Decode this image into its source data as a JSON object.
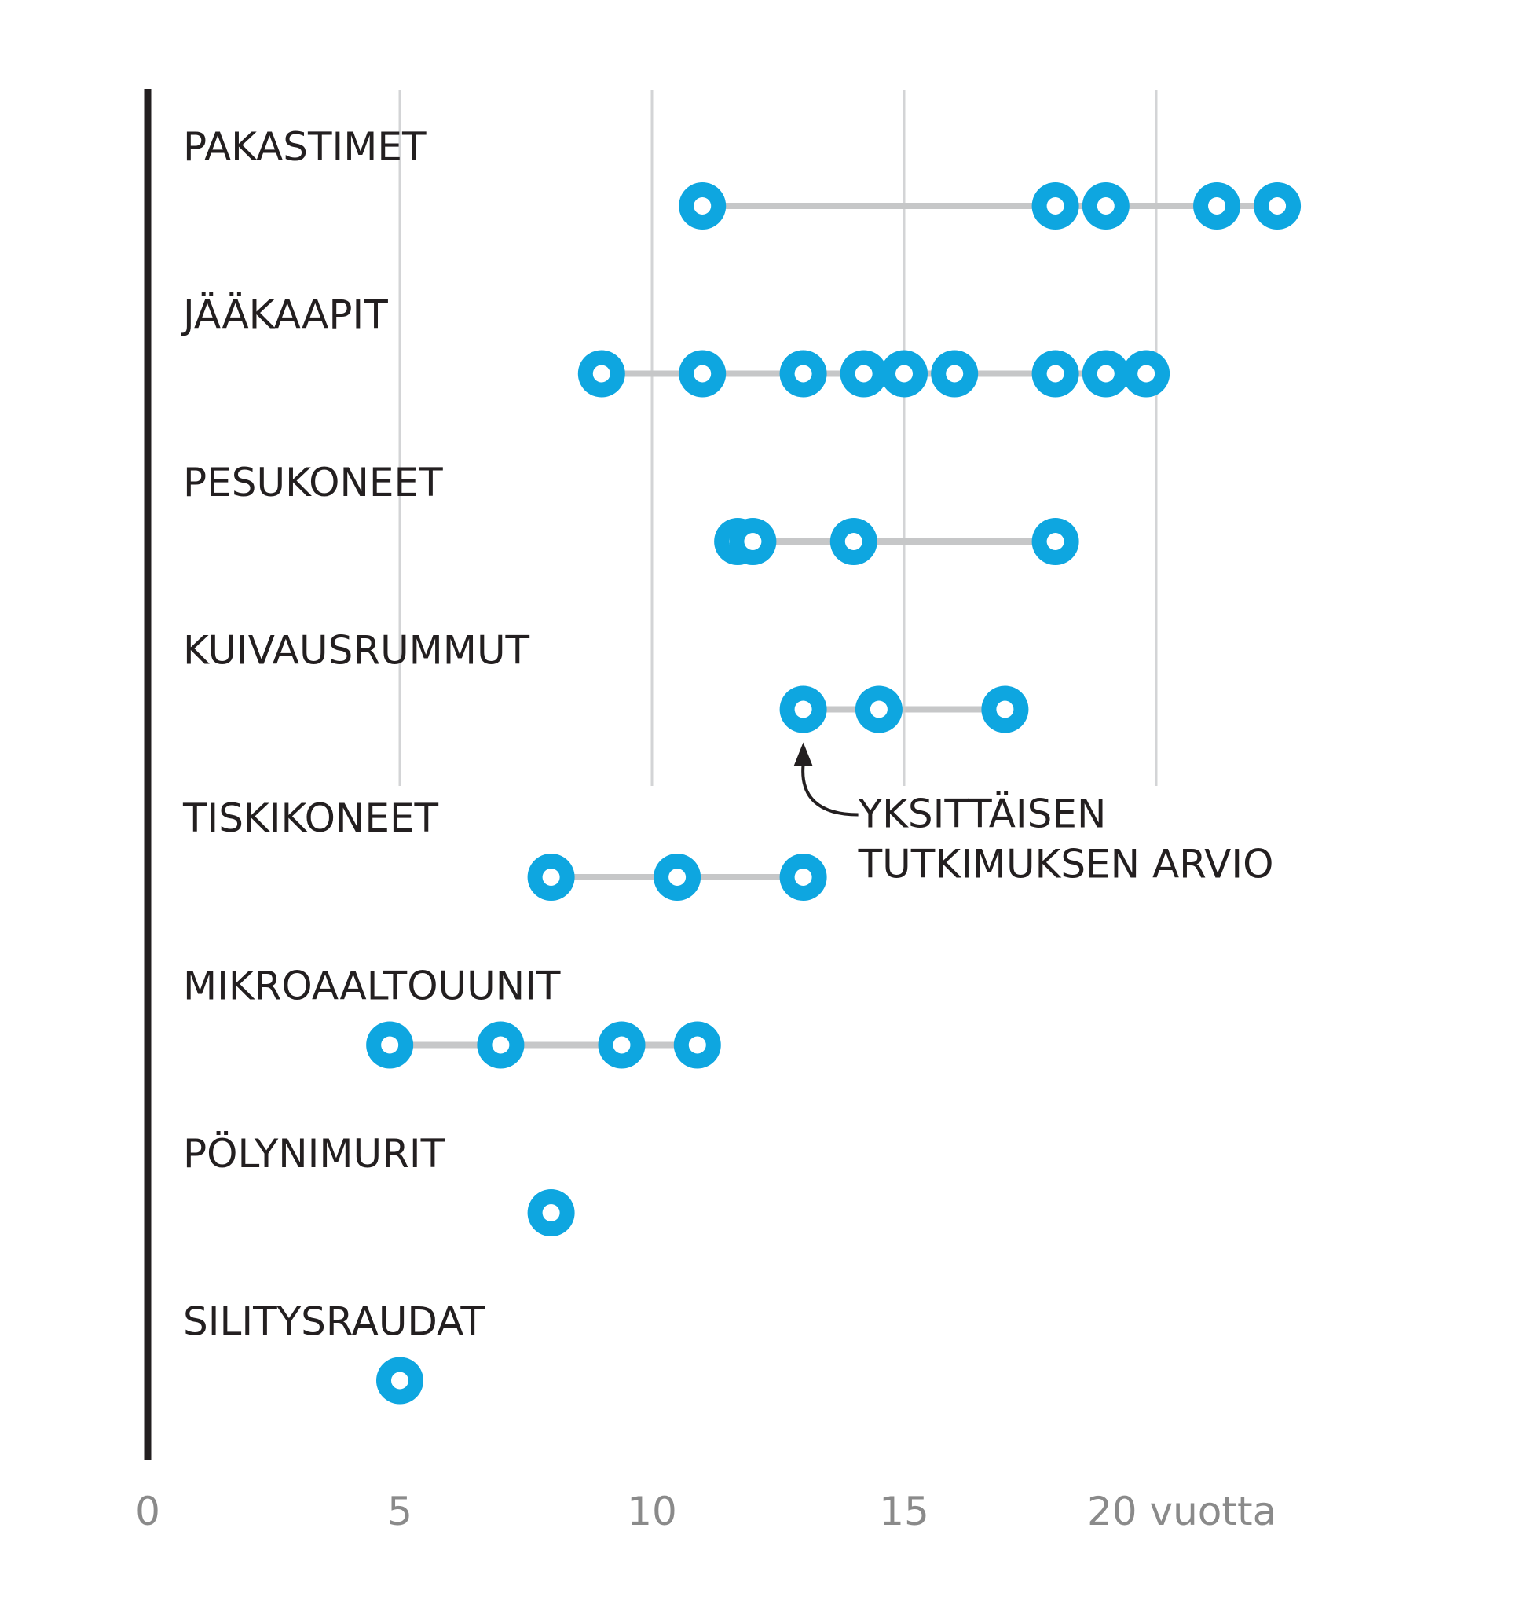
{
  "chart_data": {
    "type": "scatter",
    "xlim": [
      0,
      23
    ],
    "grid": "vertical",
    "colors": {
      "dot": "#0ea6e0",
      "connector": "#c6c7c8",
      "grid": "#d3d4d6",
      "axis": "#231f20",
      "label": "#231f20",
      "tick": "#8a8a8a"
    },
    "ticks": [
      {
        "value": 0,
        "label": "0"
      },
      {
        "value": 5,
        "label": "5"
      },
      {
        "value": 10,
        "label": "10"
      },
      {
        "value": 15,
        "label": "15"
      },
      {
        "value": 20,
        "label": "20 vuotta"
      }
    ],
    "categories": [
      {
        "label": "PAKASTIMET",
        "values": [
          11,
          18,
          19,
          21.2,
          22.4
        ]
      },
      {
        "label": "JÄÄKAAPIT",
        "values": [
          9,
          11,
          13,
          14.2,
          15,
          16,
          18,
          19,
          19.8
        ]
      },
      {
        "label": "PESUKONEET",
        "values": [
          11.7,
          12,
          14,
          18
        ]
      },
      {
        "label": "KUIVAUSRUMMUT",
        "values": [
          13,
          14.5,
          17
        ]
      },
      {
        "label": "TISKIKONEET",
        "values": [
          8,
          10.5,
          13
        ]
      },
      {
        "label": "MIKROAALTOUUNIT",
        "values": [
          4.8,
          7,
          9.4,
          10.9
        ]
      },
      {
        "label": "PÖLYNIMURIT",
        "values": [
          8
        ]
      },
      {
        "label": "SILITYSRAUDAT",
        "values": [
          5
        ]
      }
    ],
    "annotation": {
      "lines": [
        "YKSITTÄISEN",
        "TUTKIMUKSEN ARVIO"
      ],
      "category": "KUIVAUSRUMMUT",
      "value": 13
    }
  }
}
